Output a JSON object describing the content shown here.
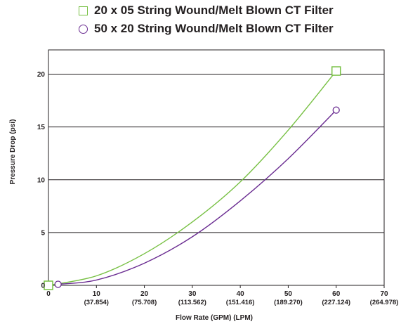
{
  "chart_data": {
    "type": "line",
    "title": "",
    "xlabel": "Flow Rate (GPM) (LPM)",
    "ylabel": "Pressure Drop (psi)",
    "xlim": [
      0,
      70
    ],
    "ylim": [
      0,
      22.3
    ],
    "x_ticks": [
      {
        "value": 0,
        "label": "0",
        "sub": ""
      },
      {
        "value": 10,
        "label": "10",
        "sub": "(37.854)"
      },
      {
        "value": 20,
        "label": "20",
        "sub": "(75.708)"
      },
      {
        "value": 30,
        "label": "30",
        "sub": "(113.562)"
      },
      {
        "value": 40,
        "label": "40",
        "sub": "(151.416)"
      },
      {
        "value": 50,
        "label": "50",
        "sub": "(189.270)"
      },
      {
        "value": 60,
        "label": "60",
        "sub": "(227.124)"
      },
      {
        "value": 70,
        "label": "70",
        "sub": "(264.978)"
      }
    ],
    "y_ticks": [
      0,
      5,
      10,
      15,
      20
    ],
    "grid": "horizontal",
    "legend_position": "top",
    "series": [
      {
        "name": "20 x 05 String Wound/Melt Blown CT Filter",
        "color": "#77c043",
        "marker": "square",
        "x": [
          0,
          10,
          20,
          30,
          40,
          50,
          60
        ],
        "y": [
          0.0,
          0.9,
          3.0,
          6.0,
          9.8,
          14.7,
          20.3
        ],
        "marker_x": [
          0,
          60
        ],
        "marker_y": [
          0.0,
          20.3
        ]
      },
      {
        "name": "50 x 20 String Wound/Melt Blown CT Filter",
        "color": "#6a2c91",
        "marker": "circle",
        "x": [
          2,
          10,
          20,
          30,
          40,
          50,
          60
        ],
        "y": [
          0.1,
          0.5,
          2.1,
          4.6,
          8.0,
          12.0,
          16.6
        ],
        "marker_x": [
          2,
          60
        ],
        "marker_y": [
          0.1,
          16.6
        ]
      }
    ]
  }
}
